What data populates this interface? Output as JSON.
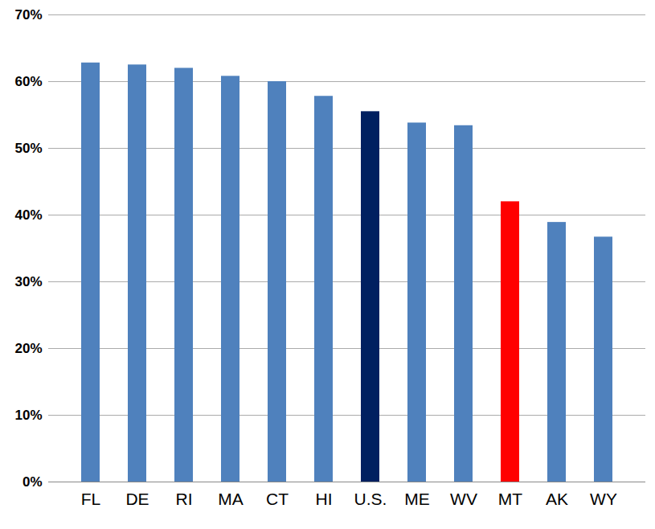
{
  "chart_data": {
    "type": "bar",
    "categories": [
      "FL",
      "DE",
      "RI",
      "MA",
      "CT",
      "HI",
      "U.S.",
      "ME",
      "WV",
      "MT",
      "AK",
      "WY"
    ],
    "values": [
      62.8,
      62.5,
      62.0,
      60.8,
      60.0,
      57.8,
      55.5,
      53.8,
      53.4,
      42.0,
      38.9,
      36.7
    ],
    "colors": [
      "#4f81bd",
      "#4f81bd",
      "#4f81bd",
      "#4f81bd",
      "#4f81bd",
      "#4f81bd",
      "#002060",
      "#4f81bd",
      "#4f81bd",
      "#ff0000",
      "#4f81bd",
      "#4f81bd"
    ],
    "ylim": [
      0,
      70
    ],
    "yticks": [
      {
        "value": 0,
        "label": "0%"
      },
      {
        "value": 10,
        "label": "10%"
      },
      {
        "value": 20,
        "label": "20%"
      },
      {
        "value": 30,
        "label": "30%"
      },
      {
        "value": 40,
        "label": "40%"
      },
      {
        "value": 50,
        "label": "50%"
      },
      {
        "value": 60,
        "label": "60%"
      },
      {
        "value": 70,
        "label": "70%"
      }
    ],
    "grid": true
  }
}
